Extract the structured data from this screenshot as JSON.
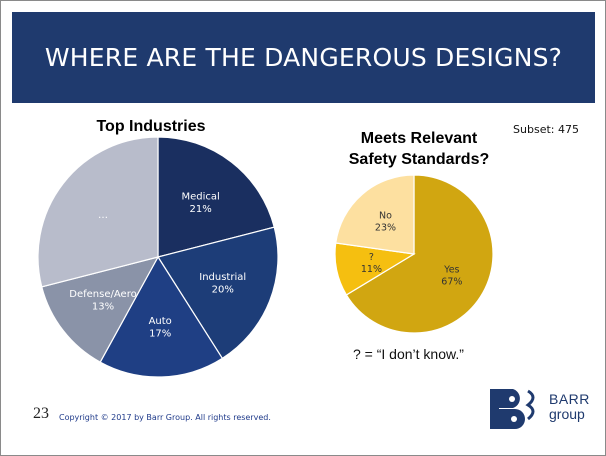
{
  "header": {
    "title": "WHERE ARE THE DANGEROUS DESIGNS?"
  },
  "subset_label": "Subset: 475",
  "footnote": "? = “I don’t know.”",
  "footer": {
    "page_number": "23",
    "copyright": "Copyright © 2017 by Barr Group.  All rights reserved."
  },
  "logo": {
    "line1": "BARR",
    "line2": "group"
  },
  "colors": {
    "title_bar": "#1f3a6e",
    "text_on_dark": "#ffffff",
    "text_on_light": "#333333"
  },
  "chart_data": [
    {
      "type": "pie",
      "title": "Top Industries",
      "categories": [
        "Medical",
        "Industrial",
        "Auto",
        "Defense/Aero",
        "..."
      ],
      "labels": [
        "Medical\n21%",
        "Industrial\n20%",
        "Auto\n17%",
        "Defense/Aero\n13%",
        "…"
      ],
      "values": [
        21,
        20,
        17,
        13,
        29
      ],
      "colors": [
        "#1a2f60",
        "#1d3d78",
        "#1f3f84",
        "#8a93a8",
        "#b8bccb"
      ],
      "label_dark_text": [
        false,
        false,
        false,
        false,
        false
      ]
    },
    {
      "type": "pie",
      "title": "Meets Relevant\nSafety Standards?",
      "categories": [
        "Yes",
        "?",
        "No"
      ],
      "labels": [
        "Yes\n67%",
        "?\n11%",
        "No\n23%"
      ],
      "values": [
        67,
        11,
        23
      ],
      "colors": [
        "#d1a611",
        "#f5bf10",
        "#fde0a0"
      ],
      "label_dark_text": [
        true,
        true,
        true
      ]
    }
  ]
}
